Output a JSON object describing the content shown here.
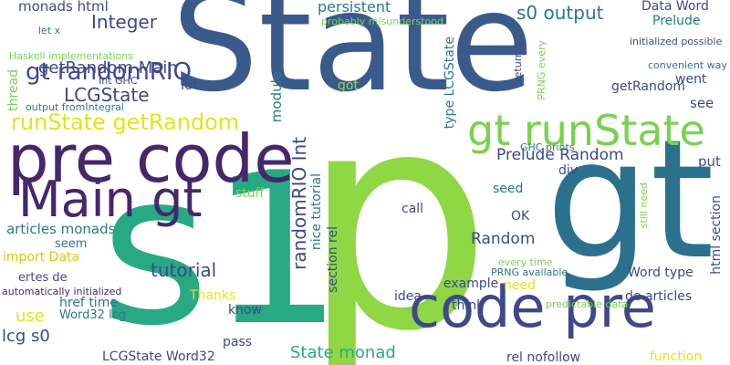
{
  "cloud": {
    "words": [
      {
        "text": "State",
        "color": "#3b5a8c"
      },
      {
        "text": "p",
        "color": "#8fd744"
      },
      {
        "text": "gt",
        "color": "#2b718e"
      },
      {
        "text": "s1",
        "color": "#27a984"
      },
      {
        "text": "pre code",
        "color": "#46276b"
      },
      {
        "text": "code pre",
        "color": "#3e4989"
      },
      {
        "text": "Main gt",
        "color": "#46276b"
      },
      {
        "text": "gt runState",
        "color": "#7ad151"
      },
      {
        "text": "runState getRandom",
        "color": "#e2e418"
      },
      {
        "text": "gt randomRIO",
        "color": "#3e4989"
      },
      {
        "text": "getRandom Main",
        "color": "#3e4989"
      },
      {
        "text": "LCGState",
        "color": "#3e4989"
      },
      {
        "text": "Integer",
        "color": "#3e4989"
      },
      {
        "text": "monads html",
        "color": "#3e4989"
      },
      {
        "text": "persistent",
        "color": "#2a788e"
      },
      {
        "text": "s0 output",
        "color": "#2a788e"
      },
      {
        "text": "Data Word",
        "color": "#3e4989"
      },
      {
        "text": "Prelude",
        "color": "#2a788e"
      },
      {
        "text": "went",
        "color": "#3e4989"
      },
      {
        "text": "getRandom",
        "color": "#3e4989"
      },
      {
        "text": "lot",
        "color": "#3e4989"
      },
      {
        "text": "got",
        "color": "#8fd744"
      },
      {
        "text": "see",
        "color": "#3e4989"
      },
      {
        "text": "Prelude Random",
        "color": "#3e4989"
      },
      {
        "text": "put",
        "color": "#3e4989"
      },
      {
        "text": "div",
        "color": "#3e4989"
      },
      {
        "text": "seed",
        "color": "#2a788e"
      },
      {
        "text": "call",
        "color": "#3e4989"
      },
      {
        "text": "OK",
        "color": "#3e4989"
      },
      {
        "text": "Random",
        "color": "#3e4989"
      },
      {
        "text": "tutorial",
        "color": "#3e4989"
      },
      {
        "text": "stuff",
        "color": "#7ad151"
      },
      {
        "text": "articles monads",
        "color": "#2a788e"
      },
      {
        "text": "seem",
        "color": "#2a788e"
      },
      {
        "text": "import Data",
        "color": "#e2c218"
      },
      {
        "text": "ertes de",
        "color": "#3e4989"
      },
      {
        "text": "Thanks",
        "color": "#e2e418"
      },
      {
        "text": "href time",
        "color": "#2a788e"
      },
      {
        "text": "use",
        "color": "#e2e418"
      },
      {
        "text": "Word32 lcg",
        "color": "#2a788e"
      },
      {
        "text": "know",
        "color": "#3e4989"
      },
      {
        "text": "lcg s0",
        "color": "#3e4989"
      },
      {
        "text": "pass",
        "color": "#3e4989"
      },
      {
        "text": "LCGState Word32",
        "color": "#3e4989"
      },
      {
        "text": "State monad",
        "color": "#27a984"
      },
      {
        "text": "rel nofollow",
        "color": "#3e4989"
      },
      {
        "text": "function",
        "color": "#e2e418"
      },
      {
        "text": "idea",
        "color": "#3e4989"
      },
      {
        "text": "example",
        "color": "#3e4989"
      },
      {
        "text": "think",
        "color": "#3e4989"
      },
      {
        "text": "need",
        "color": "#e2e418"
      },
      {
        "text": "Word type",
        "color": "#3e4989"
      },
      {
        "text": "de articles",
        "color": "#3e4989"
      },
      {
        "text": "module",
        "color": "#2a788e"
      },
      {
        "text": "randomRIO Int",
        "color": "#3e4989"
      },
      {
        "text": "nice tutorial",
        "color": "#2a788e"
      },
      {
        "text": "section rel",
        "color": "#3e4989"
      },
      {
        "text": "type LCGState",
        "color": "#2a788e"
      },
      {
        "text": "thread",
        "color": "#7ad151"
      },
      {
        "text": "html section",
        "color": "#3e4989"
      },
      {
        "text": "probably misunderstood",
        "color": "#7ad151"
      },
      {
        "text": "let x",
        "color": "#2a788e"
      },
      {
        "text": "Int GHC",
        "color": "#3e4989"
      },
      {
        "text": "Haskell implementations",
        "color": "#7ad151"
      },
      {
        "text": "output fromIntegral",
        "color": "#2a788e"
      },
      {
        "text": "initialized possible",
        "color": "#3e4989"
      },
      {
        "text": "convenient way",
        "color": "#2a788e"
      },
      {
        "text": "PRNG every",
        "color": "#7ad151"
      },
      {
        "text": "return x",
        "color": "#3e4989"
      },
      {
        "text": "GHC prints",
        "color": "#2a788e"
      },
      {
        "text": "still need",
        "color": "#7ad151"
      },
      {
        "text": "every time",
        "color": "#7ad151"
      },
      {
        "text": "PRNG available",
        "color": "#2a788e"
      },
      {
        "text": "predictable data",
        "color": "#7ad151"
      },
      {
        "text": "automatically initialized",
        "color": "#46276b"
      }
    ]
  }
}
